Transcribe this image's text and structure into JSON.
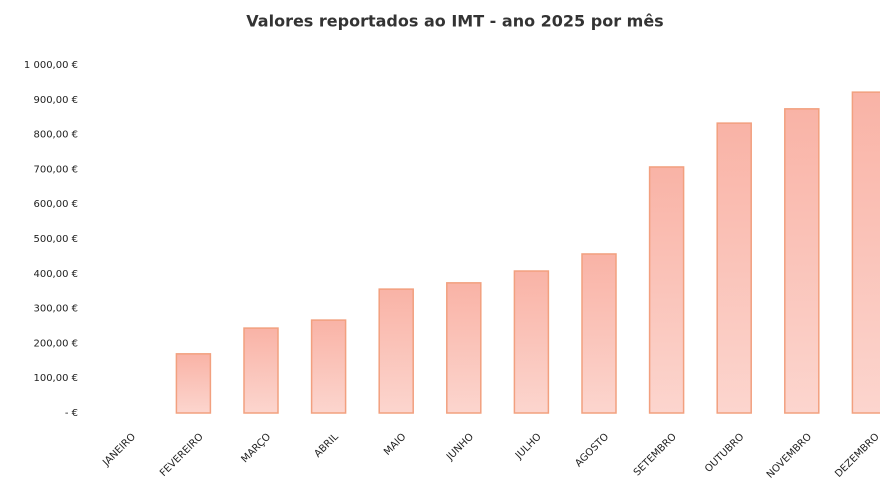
{
  "chart_data": {
    "type": "bar",
    "title": "Valores reportados ao IMT - ano 2025 por mês",
    "categories": [
      "JANEIRO",
      "FEVEREIRO",
      "MARÇO",
      "ABRIL",
      "MAIO",
      "JUNHO",
      "JULHO",
      "AGOSTO",
      "SETEMBRO",
      "OUTUBRO",
      "NOVEMBRO",
      "DEZEMBRO"
    ],
    "values": [
      0,
      170,
      244,
      267,
      356,
      374,
      408,
      457,
      707,
      833,
      874,
      922
    ],
    "color": "#f9b3a6",
    "edge_color": "#f2a07f",
    "ylim": [
      0,
      1000
    ],
    "yticks": [
      {
        "value": 0,
        "label": "-  €"
      },
      {
        "value": 100,
        "label": "100,00 €"
      },
      {
        "value": 200,
        "label": "200,00 €"
      },
      {
        "value": 300,
        "label": "300,00 €"
      },
      {
        "value": 400,
        "label": "400,00 €"
      },
      {
        "value": 500,
        "label": "500,00 €"
      },
      {
        "value": 600,
        "label": "600,00 €"
      },
      {
        "value": 700,
        "label": "700,00 €"
      },
      {
        "value": 800,
        "label": "800,00 €"
      },
      {
        "value": 900,
        "label": "900,00 €"
      },
      {
        "value": 1000,
        "label": "1 000,00 €"
      }
    ],
    "grid": false
  }
}
